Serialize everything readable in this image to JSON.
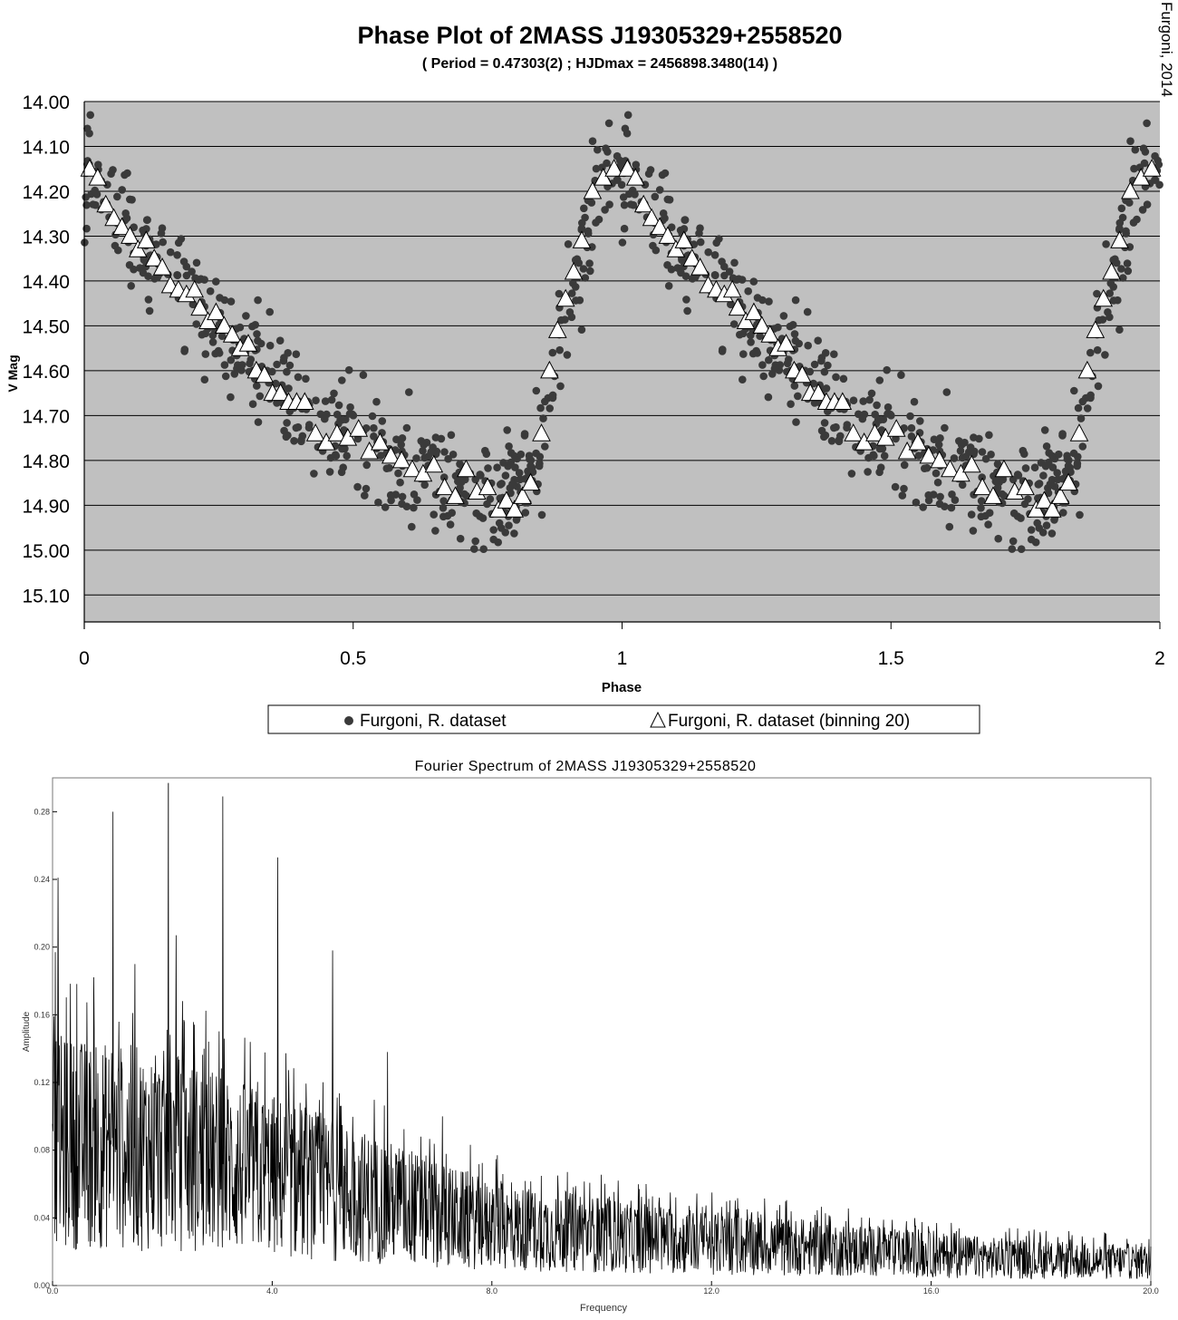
{
  "chart_data": [
    {
      "type": "scatter",
      "title": "Phase Plot of 2MASS J19305329+2558520",
      "subtitle": "( Period = 0.47303(2) ; HJDmax = 2456898.3480(14) )",
      "credit": "Furgoni, 2014",
      "xlabel": "Phase",
      "ylabel": "V Mag",
      "xlim": [
        0,
        2
      ],
      "ylim": [
        15.16,
        14.0
      ],
      "y_inverted": true,
      "grid": true,
      "x_ticks": [
        "0",
        "0.5",
        "1",
        "1.5",
        "2"
      ],
      "y_ticks": [
        "14.00",
        "14.10",
        "14.20",
        "14.30",
        "14.40",
        "14.50",
        "14.60",
        "14.70",
        "14.80",
        "14.90",
        "15.00",
        "15.10"
      ],
      "legend_position": "bottom-center",
      "series": [
        {
          "name": "Furgoni, R. dataset",
          "marker": "filled-circle",
          "color": "#3a3a3a",
          "model": {
            "note": "approximately 1000 observations spread around this mean light curve, repeated over phase 1-2",
            "phase": [
              0,
              0.05,
              0.1,
              0.2,
              0.3,
              0.4,
              0.5,
              0.6,
              0.7,
              0.8,
              0.85,
              0.9,
              0.95,
              1.0
            ],
            "mag": [
              14.15,
              14.22,
              14.3,
              14.43,
              14.56,
              14.68,
              14.75,
              14.82,
              14.86,
              14.88,
              14.76,
              14.45,
              14.22,
              14.15
            ],
            "scatter_sd": 0.06
          }
        },
        {
          "name": "Furgoni, R. dataset (binning 20)",
          "marker": "open-triangle",
          "color": "#ffffff",
          "phase": [
            0.01,
            0.025,
            0.04,
            0.055,
            0.07,
            0.085,
            0.1,
            0.115,
            0.13,
            0.145,
            0.16,
            0.175,
            0.19,
            0.205,
            0.215,
            0.23,
            0.245,
            0.26,
            0.275,
            0.29,
            0.305,
            0.32,
            0.335,
            0.35,
            0.365,
            0.38,
            0.395,
            0.41,
            0.43,
            0.45,
            0.47,
            0.49,
            0.51,
            0.53,
            0.55,
            0.57,
            0.59,
            0.61,
            0.63,
            0.65,
            0.67,
            0.69,
            0.71,
            0.73,
            0.75,
            0.77,
            0.785,
            0.8,
            0.815,
            0.83,
            0.85,
            0.865,
            0.88,
            0.895,
            0.91,
            0.925,
            0.945,
            0.965,
            0.985
          ],
          "mag": [
            14.15,
            14.17,
            14.23,
            14.26,
            14.28,
            14.3,
            14.33,
            14.31,
            14.35,
            14.37,
            14.41,
            14.42,
            14.43,
            14.42,
            14.46,
            14.49,
            14.47,
            14.5,
            14.52,
            14.55,
            14.54,
            14.6,
            14.61,
            14.65,
            14.65,
            14.67,
            14.67,
            14.67,
            14.74,
            14.76,
            14.74,
            14.75,
            14.73,
            14.78,
            14.76,
            14.79,
            14.8,
            14.82,
            14.83,
            14.81,
            14.86,
            14.88,
            14.82,
            14.87,
            14.86,
            14.91,
            14.89,
            14.91,
            14.88,
            14.85,
            14.74,
            14.6,
            14.51,
            14.44,
            14.38,
            14.31,
            14.2,
            14.17,
            14.15
          ]
        }
      ]
    },
    {
      "type": "line",
      "title": "Fourier Spectrum of 2MASS J19305329+2558520",
      "xlabel": "Frequency",
      "ylabel": "Amplitude",
      "xlim": [
        0,
        20
      ],
      "ylim": [
        0,
        0.3
      ],
      "x_ticks": [
        "0.0",
        "4.0",
        "8.0",
        "12.0",
        "16.0",
        "20.0"
      ],
      "y_ticks": [
        "0.00",
        "0.04",
        "0.08",
        "0.12",
        "0.16",
        "0.20",
        "0.24",
        "0.28"
      ],
      "grid": false,
      "series": [
        {
          "color": "#000000",
          "peaks": {
            "frequency": [
              0.05,
              0.1,
              1.1,
              1.5,
              2.11,
              2.25,
              3.1,
              4.1,
              5.1,
              6.1,
              7.1,
              8.1,
              9.2,
              10.3
            ],
            "amplitude": [
              0.197,
              0.241,
              0.28,
              0.19,
              0.297,
              0.207,
              0.289,
              0.253,
              0.198,
              0.138,
              0.1,
              0.077,
              0.065,
              0.062
            ]
          },
          "envelope": {
            "frequency": [
              0,
              2,
              4,
              6,
              8,
              10,
              12,
              14,
              16,
              18,
              20
            ],
            "amplitude": [
              0.085,
              0.08,
              0.065,
              0.05,
              0.035,
              0.03,
              0.025,
              0.022,
              0.018,
              0.015,
              0.014
            ]
          }
        }
      ]
    }
  ],
  "legend": {
    "item1": "Furgoni, R. dataset",
    "item2": "Furgoni, R. dataset (binning 20)"
  }
}
